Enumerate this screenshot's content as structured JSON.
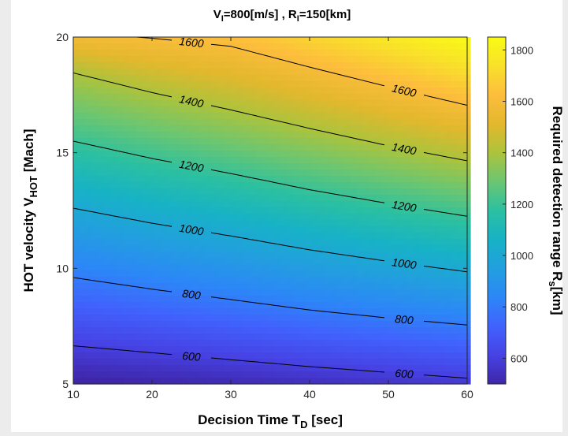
{
  "chart_data": {
    "type": "contour",
    "title": {
      "v_sym": "V",
      "v_sub": "I",
      "v_rest": "=800[m/s] , ",
      "r_sym": "R",
      "r_sub": "I",
      "r_rest": "=150[km]"
    },
    "xlabel": {
      "main": "Decision Time T",
      "sub": "D",
      "rest": " [sec]"
    },
    "ylabel": {
      "main": "HOT velocity V",
      "sub": "HOT",
      "rest": " [Mach]"
    },
    "colorbar_label": {
      "main": "Required detection range R",
      "sub": "s",
      "rest": "[km]"
    },
    "xlim": [
      10,
      60
    ],
    "ylim": [
      5,
      20
    ],
    "x_ticks": [
      "10",
      "20",
      "30",
      "40",
      "50",
      "60"
    ],
    "y_ticks": [
      "5",
      "10",
      "15",
      "20"
    ],
    "colorbar_range": [
      500,
      1850
    ],
    "colorbar_ticks": [
      "600",
      "800",
      "1000",
      "1200",
      "1400",
      "1600",
      "1800"
    ],
    "colormap": [
      "#3e26a8",
      "#4742e4",
      "#4162fd",
      "#2c87f7",
      "#229fde",
      "#17b2c6",
      "#2bc0a1",
      "#6bc672",
      "#acc33c",
      "#e3b82d",
      "#fdbd3d",
      "#f9e12a",
      "#f9fb15"
    ],
    "contour_color": "#000000",
    "grid": false,
    "contours": [
      {
        "level": 600,
        "x": [
          10,
          20,
          30,
          40,
          50,
          60
        ],
        "y": [
          6.65,
          6.35,
          6.05,
          5.75,
          5.5,
          5.25
        ],
        "labels": [
          "600",
          "600"
        ]
      },
      {
        "level": 800,
        "x": [
          10,
          20,
          30,
          40,
          50,
          60
        ],
        "y": [
          9.6,
          9.1,
          8.65,
          8.2,
          7.85,
          7.55
        ],
        "labels": [
          "800",
          "800"
        ]
      },
      {
        "level": 1000,
        "x": [
          10,
          20,
          30,
          40,
          50,
          60
        ],
        "y": [
          12.6,
          11.95,
          11.4,
          10.8,
          10.3,
          9.85
        ],
        "labels": [
          "1000",
          "1000"
        ]
      },
      {
        "level": 1200,
        "x": [
          10,
          20,
          30,
          40,
          50,
          60
        ],
        "y": [
          15.5,
          14.75,
          14.1,
          13.4,
          12.8,
          12.25
        ],
        "labels": [
          "1200",
          "1200"
        ]
      },
      {
        "level": 1400,
        "x": [
          10,
          20,
          30,
          40,
          50,
          60
        ],
        "y": [
          18.45,
          17.6,
          16.85,
          16.05,
          15.3,
          14.65
        ],
        "labels": [
          "1400",
          "1400"
        ]
      },
      {
        "level": 1600,
        "x": [
          18,
          20,
          30,
          40,
          50,
          60
        ],
        "y": [
          20,
          19.95,
          19.6,
          18.7,
          17.85,
          17.05
        ],
        "labels": [
          "1600",
          "1600"
        ]
      }
    ]
  }
}
